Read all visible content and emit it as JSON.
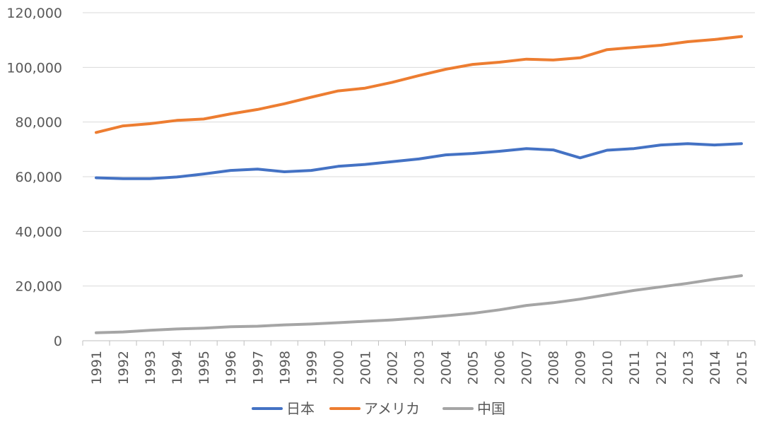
{
  "chart_data": {
    "type": "line",
    "title": "",
    "xlabel": "",
    "ylabel": "",
    "ylim": [
      0,
      120000
    ],
    "yticks": [
      0,
      20000,
      40000,
      60000,
      80000,
      100000,
      120000
    ],
    "ytick_labels": [
      "0",
      "20,000",
      "40,000",
      "60,000",
      "80,000",
      "100,000",
      "120,000"
    ],
    "grid": "horizontal",
    "legend_position": "bottom",
    "categories": [
      "1991",
      "1992",
      "1993",
      "1994",
      "1995",
      "1996",
      "1997",
      "1998",
      "1999",
      "2000",
      "2001",
      "2002",
      "2003",
      "2004",
      "2005",
      "2006",
      "2007",
      "2008",
      "2009",
      "2010",
      "2011",
      "2012",
      "2013",
      "2014",
      "2015"
    ],
    "series": [
      {
        "name": "日本",
        "color": "#4472c4",
        "values": [
          59600,
          59300,
          59300,
          59900,
          61000,
          62300,
          62800,
          61800,
          62300,
          63800,
          64500,
          65500,
          66500,
          68000,
          68500,
          69300,
          70300,
          69800,
          66900,
          69700,
          70300,
          71600,
          72100,
          71600,
          72100
        ]
      },
      {
        "name": "アメリカ",
        "color": "#ed7d31",
        "values": [
          76200,
          78600,
          79400,
          80600,
          81100,
          83000,
          84600,
          86700,
          89100,
          91400,
          92400,
          94500,
          97000,
          99300,
          101100,
          101900,
          103000,
          102700,
          103500,
          106500,
          107300,
          108100,
          109400,
          110200,
          111300
        ]
      },
      {
        "name": "中国",
        "color": "#a5a5a5",
        "values": [
          2900,
          3200,
          3800,
          4300,
          4600,
          5100,
          5300,
          5800,
          6100,
          6600,
          7100,
          7600,
          8300,
          9100,
          10000,
          11300,
          12900,
          13900,
          15200,
          16800,
          18400,
          19700,
          21000,
          22500,
          23800
        ]
      }
    ]
  }
}
